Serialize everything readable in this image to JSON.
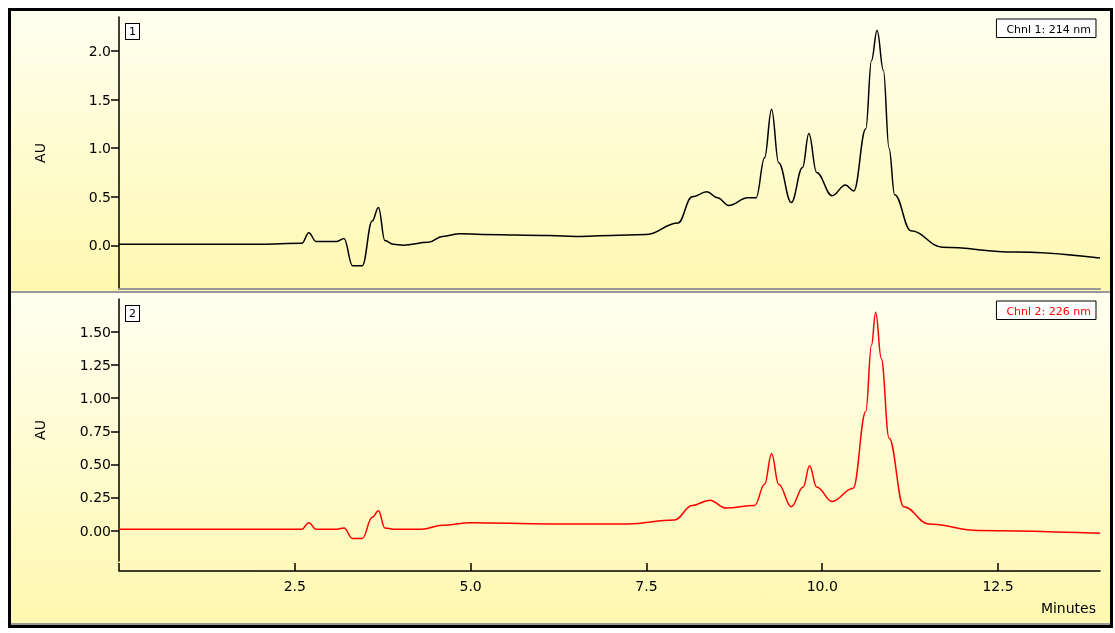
{
  "chart_data": [
    {
      "type": "line",
      "ylabel": "AU",
      "annotations": [
        "1"
      ],
      "legend": "top right",
      "grid": false,
      "marker": "none",
      "line_style": "solid",
      "tick_labels": "y",
      "xlim": [
        0,
        13.95
      ],
      "ylim": [
        -0.45,
        2.35
      ],
      "yticks": [
        {
          "value": 0,
          "label": "0.0"
        },
        {
          "value": 0.5,
          "label": "0.5"
        },
        {
          "value": 1,
          "label": "1.0"
        },
        {
          "value": 1.5,
          "label": "1.5"
        },
        {
          "value": 2,
          "label": "2.0"
        }
      ],
      "series": [
        {
          "name": "Chnl 1: 214 nm",
          "color": "#000000",
          "x": [
            0,
            1.0,
            2.0,
            2.6,
            2.7,
            2.8,
            3.1,
            3.2,
            3.32,
            3.46,
            3.6,
            3.69,
            3.78,
            3.9,
            4.04,
            4.4,
            4.6,
            4.85,
            5.16,
            6.12,
            6.5,
            7.0,
            7.49,
            7.95,
            8.15,
            8.36,
            8.51,
            8.67,
            8.94,
            9.06,
            9.18,
            9.28,
            9.38,
            9.56,
            9.72,
            9.81,
            9.92,
            10.14,
            10.33,
            10.45,
            10.62,
            10.7,
            10.78,
            10.87,
            10.95,
            11.03,
            11.26,
            11.71,
            12.73,
            13.95
          ],
          "values": [
            0.01,
            0.01,
            0.01,
            0.02,
            0.13,
            0.04,
            0.04,
            0.07,
            -0.21,
            -0.21,
            0.25,
            0.39,
            0.05,
            0.01,
            0.0,
            0.03,
            0.09,
            0.12,
            0.11,
            0.1,
            0.09,
            0.1,
            0.11,
            0.23,
            0.5,
            0.55,
            0.49,
            0.41,
            0.49,
            0.49,
            0.9,
            1.4,
            0.85,
            0.44,
            0.8,
            1.15,
            0.75,
            0.51,
            0.62,
            0.56,
            1.2,
            1.9,
            2.21,
            1.8,
            1.0,
            0.52,
            0.15,
            -0.02,
            -0.07,
            -0.13
          ]
        }
      ]
    },
    {
      "type": "line",
      "ylabel": "AU",
      "xlabel": "Minutes",
      "annotations": [
        "2"
      ],
      "legend": "top right",
      "grid": false,
      "marker": "none",
      "line_style": "solid",
      "xlim": [
        0,
        13.95
      ],
      "xticks": [
        {
          "value": 0,
          "label": null
        },
        {
          "value": 2.5,
          "label": "2.5"
        },
        {
          "value": 5,
          "label": "5.0"
        },
        {
          "value": 7.5,
          "label": "7.5"
        },
        {
          "value": 10,
          "label": "10.0"
        },
        {
          "value": 12.5,
          "label": "12.5"
        }
      ],
      "ylim": [
        -0.23,
        1.75
      ],
      "yticks": [
        {
          "value": 0,
          "label": "0.00"
        },
        {
          "value": 0.25,
          "label": "0.25"
        },
        {
          "value": 0.5,
          "label": "0.50"
        },
        {
          "value": 0.75,
          "label": "0.75"
        },
        {
          "value": 1,
          "label": "1.00"
        },
        {
          "value": 1.25,
          "label": "1.25"
        },
        {
          "value": 1.5,
          "label": "1.50"
        }
      ],
      "series": [
        {
          "name": "Chnl 2: 226 nm",
          "color": "#ff0000",
          "x": [
            0,
            1.0,
            2.0,
            2.6,
            2.7,
            2.8,
            3.1,
            3.2,
            3.32,
            3.46,
            3.6,
            3.69,
            3.78,
            3.9,
            4.3,
            4.6,
            5.0,
            6.12,
            7.23,
            7.9,
            8.15,
            8.4,
            8.63,
            9.04,
            9.18,
            9.28,
            9.38,
            9.56,
            9.73,
            9.82,
            9.92,
            10.14,
            10.44,
            10.62,
            10.7,
            10.76,
            10.84,
            10.95,
            11.16,
            11.51,
            12.22,
            13.95
          ],
          "values": [
            0.01,
            0.01,
            0.01,
            0.01,
            0.06,
            0.01,
            0.01,
            0.02,
            -0.06,
            -0.06,
            0.1,
            0.15,
            0.02,
            0.01,
            0.01,
            0.04,
            0.06,
            0.05,
            0.05,
            0.08,
            0.19,
            0.23,
            0.17,
            0.19,
            0.35,
            0.58,
            0.35,
            0.18,
            0.33,
            0.49,
            0.33,
            0.22,
            0.32,
            0.9,
            1.4,
            1.65,
            1.3,
            0.7,
            0.18,
            0.05,
            0.0,
            -0.02
          ]
        }
      ]
    }
  ]
}
